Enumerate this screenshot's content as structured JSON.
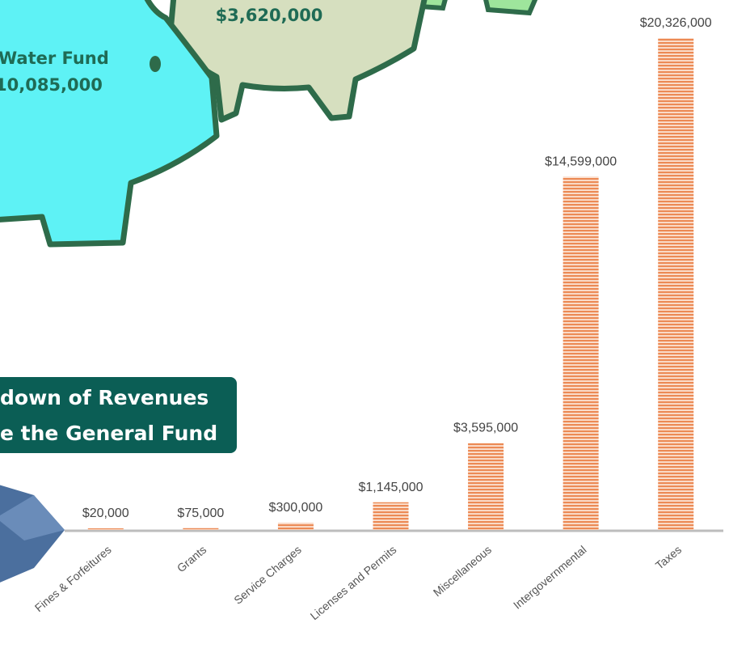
{
  "piggy_labels": {
    "water_fund_name": "Water Fund",
    "water_fund_amount": "10,085,000",
    "center_fund_amount": "$3,620,000"
  },
  "banner": {
    "line1": "down of Revenues",
    "line2": "e the General Fund"
  },
  "chart_data": {
    "type": "bar",
    "categories": [
      "Fines & Forfeitures",
      "Grants",
      "Service Charges",
      "Licenses and Permits",
      "Miscellaneous",
      "Intergovernmental",
      "Taxes"
    ],
    "values": [
      20000,
      75000,
      300000,
      1145000,
      3595000,
      14599000,
      20326000
    ],
    "value_labels": [
      "$20,000",
      "$75,000",
      "$300,000",
      "$1,145,000",
      "$3,595,000",
      "$14,599,000",
      "$20,326,000"
    ],
    "color": "#ec8a55"
  }
}
